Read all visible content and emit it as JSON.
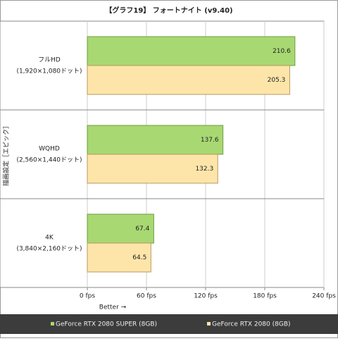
{
  "chart_data": {
    "type": "bar",
    "orientation": "horizontal",
    "title": "【グラフ19】 フォートナイト (v9.40)",
    "y_axis_label": "描画設定［エピック］",
    "x_axis_label": "Better →",
    "categories": [
      [
        "フルHD",
        "(1,920×1,080ドット)"
      ],
      [
        "WQHD",
        "(2,560×1,440ドット)"
      ],
      [
        "4K",
        "(3,840×2,160ドット)"
      ]
    ],
    "series": [
      {
        "name": "GeForce RTX 2080 SUPER (8GB)",
        "color": "#a8d872",
        "values": [
          210.6,
          137.6,
          67.4
        ]
      },
      {
        "name": "GeForce RTX 2080 (8GB)",
        "color": "#fde5aa",
        "values": [
          205.3,
          132.3,
          64.5
        ]
      }
    ],
    "xlim": [
      0,
      240
    ],
    "xticks": [
      {
        "value": 0,
        "label": "0 fps"
      },
      {
        "value": 60,
        "label": "60 fps"
      },
      {
        "value": 120,
        "label": "120 fps"
      },
      {
        "value": 180,
        "label": "180 fps"
      },
      {
        "value": 240,
        "label": "240 fps"
      }
    ],
    "grid": true,
    "legend": "bottom"
  }
}
